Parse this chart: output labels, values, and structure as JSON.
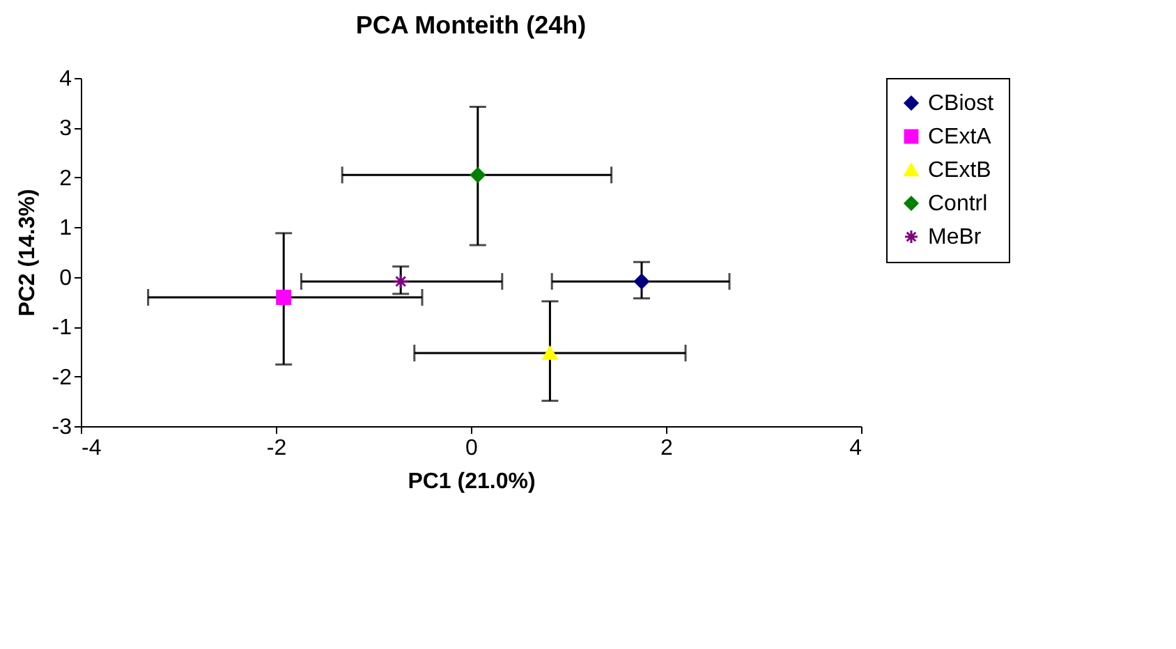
{
  "chart_data": {
    "type": "scatter",
    "title": "PCA  Monteith (24h)",
    "xlabel": "PC1 (21.0%)",
    "ylabel": "PC2 (14.3%)",
    "xlim": [
      -4,
      4
    ],
    "xticks": [
      -4,
      -2,
      0,
      2,
      4
    ],
    "ylim": [
      -3,
      4
    ],
    "yticks": [
      -3,
      -2,
      -1,
      0,
      1,
      2,
      3,
      4
    ],
    "grid": false,
    "legend": "right",
    "series": [
      {
        "name": "CBiost",
        "color": "#000080",
        "marker": "diamond",
        "x": [
          1.75
        ],
        "values": [
          -0.09
        ],
        "xerrors": [
          [
            0.83,
            2.65
          ]
        ],
        "errors": [
          [
            -0.43,
            0.3
          ]
        ]
      },
      {
        "name": "CExtA",
        "color": "#ff00ff",
        "marker": "square",
        "x": [
          -1.92
        ],
        "values": [
          -0.41
        ],
        "xerrors": [
          [
            -3.31,
            -0.5
          ]
        ],
        "errors": [
          [
            -1.76,
            0.88
          ]
        ]
      },
      {
        "name": "CExtB",
        "color": "#ffff00",
        "marker": "triangle",
        "x": [
          0.81
        ],
        "values": [
          -1.53
        ],
        "xerrors": [
          [
            -0.58,
            2.2
          ]
        ],
        "errors": [
          [
            -2.49,
            -0.49
          ]
        ]
      },
      {
        "name": "Contrl",
        "color": "#008000",
        "marker": "diamond",
        "x": [
          0.07
        ],
        "values": [
          2.05
        ],
        "xerrors": [
          [
            -1.32,
            1.44
          ]
        ],
        "errors": [
          [
            0.64,
            3.42
          ]
        ]
      },
      {
        "name": "MeBr",
        "color": "#800080",
        "marker": "cross",
        "x": [
          -0.72
        ],
        "values": [
          -0.09
        ],
        "xerrors": [
          [
            -1.74,
            0.32
          ]
        ],
        "errors": [
          [
            -0.34,
            0.21
          ]
        ]
      }
    ]
  }
}
